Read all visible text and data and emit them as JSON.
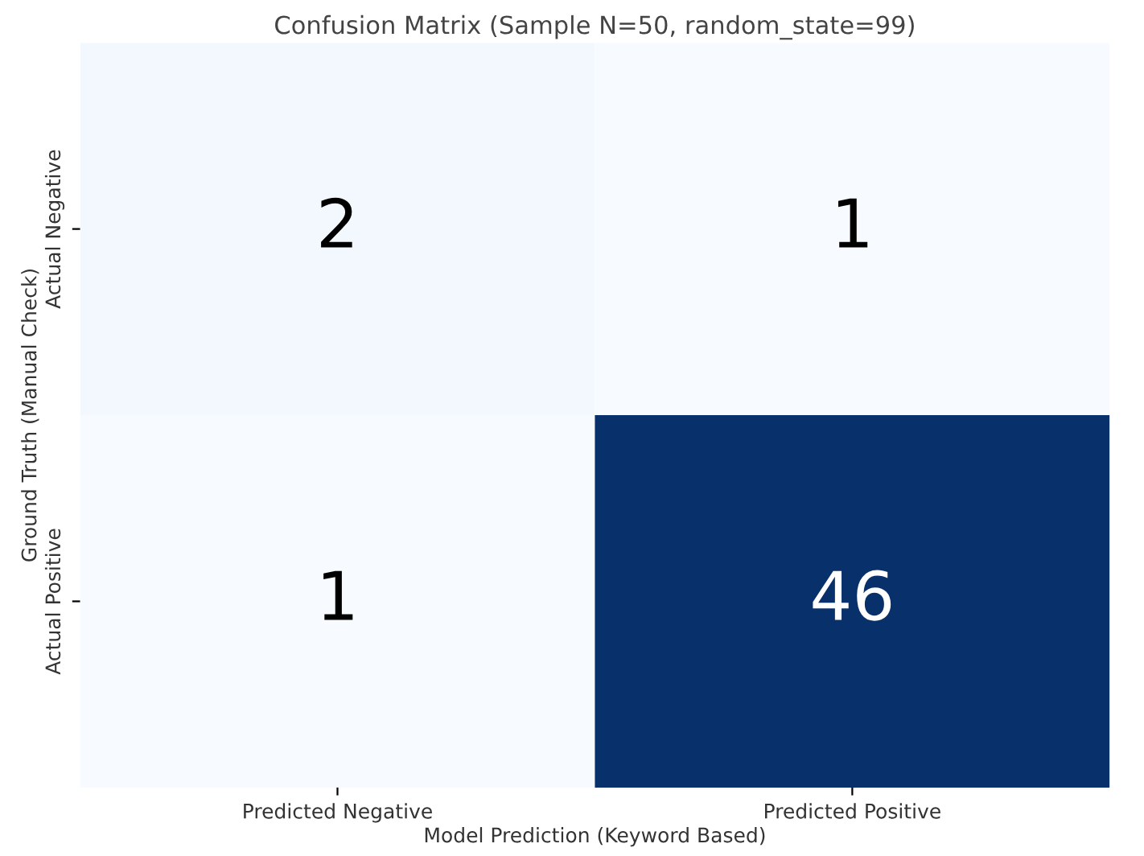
{
  "chart_data": {
    "type": "heatmap",
    "title": "Confusion Matrix (Sample N=50, random_state=99)",
    "xlabel": "Model Prediction (Keyword Based)",
    "ylabel": "Ground Truth (Manual Check)",
    "categories": [
      "Predicted Negative",
      "Predicted Positive"
    ],
    "y_categories": [
      "Actual Negative",
      "Actual Positive"
    ],
    "cells": [
      [
        2,
        1
      ],
      [
        1,
        46
      ]
    ],
    "data_labels": true
  }
}
